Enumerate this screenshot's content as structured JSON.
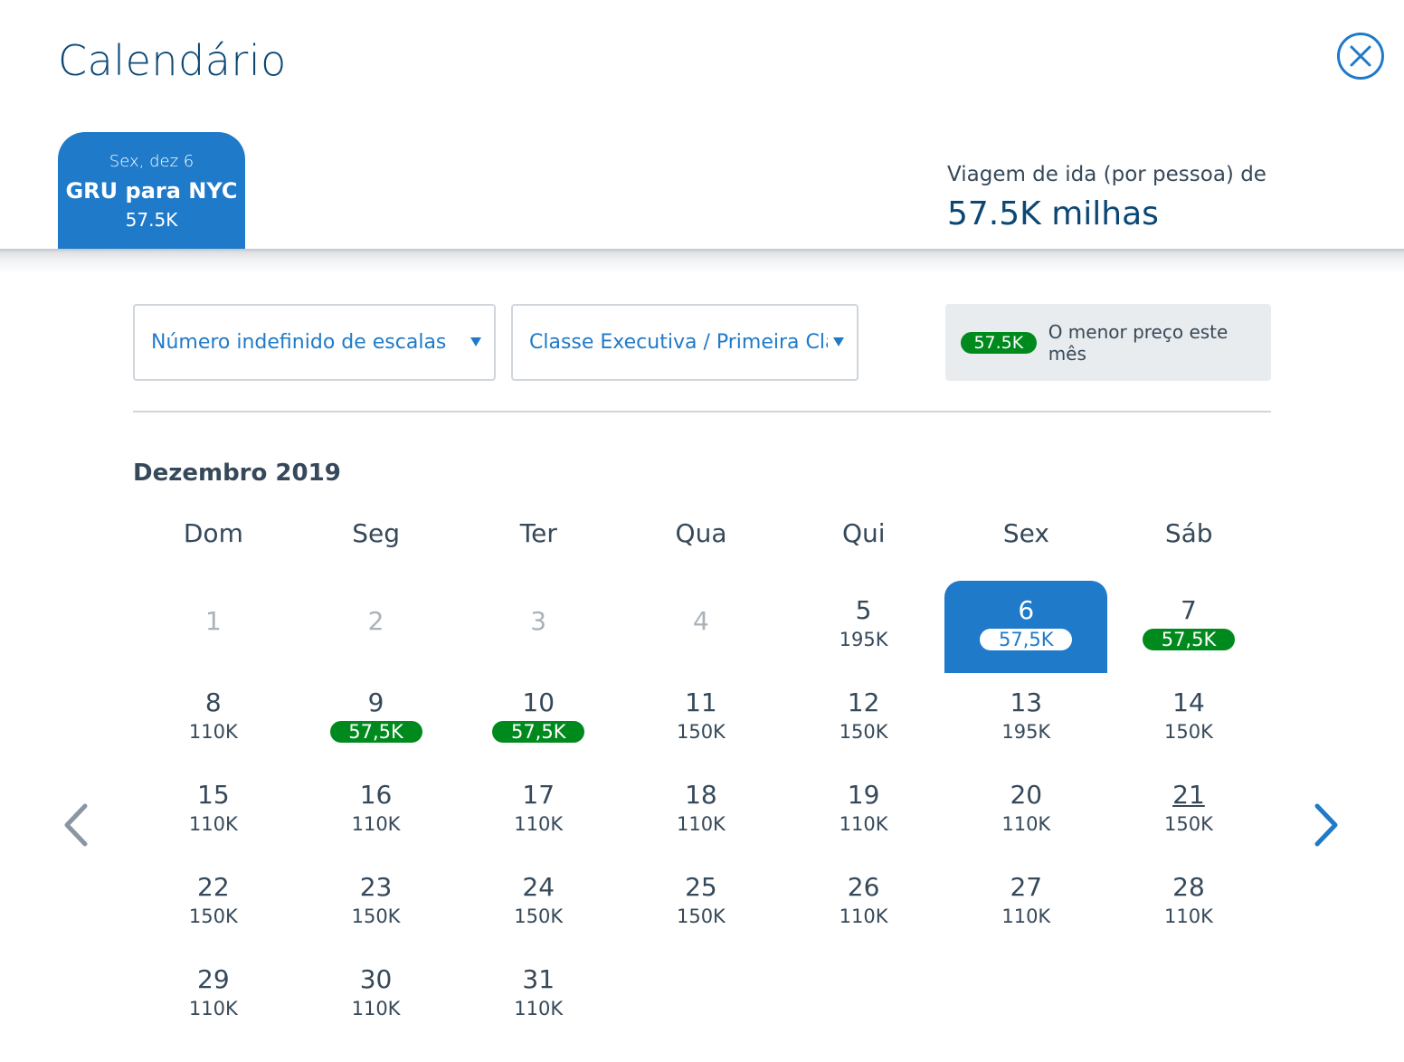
{
  "header": {
    "title": "Calendário",
    "close_icon": "close-circle-icon"
  },
  "trip_tab": {
    "date": "Sex, dez 6",
    "route": "GRU para NYC",
    "price": "57.5K"
  },
  "summary": {
    "label": "Viagem de ida (por pessoa) de",
    "value": "57.5K milhas"
  },
  "filters": {
    "stops": "Número indefinido de escalas",
    "cabin": "Classe Executiva / Primeira Clas"
  },
  "legend": {
    "badge": "57.5K",
    "text": "O menor preço este mês"
  },
  "calendar": {
    "month": "Dezembro 2019",
    "weekdays": [
      "Dom",
      "Seg",
      "Ter",
      "Qua",
      "Qui",
      "Sex",
      "Sáb"
    ],
    "days": [
      {
        "day": "1",
        "price": "",
        "state": "disabled"
      },
      {
        "day": "2",
        "price": "",
        "state": "disabled"
      },
      {
        "day": "3",
        "price": "",
        "state": "disabled"
      },
      {
        "day": "4",
        "price": "",
        "state": "disabled"
      },
      {
        "day": "5",
        "price": "195K",
        "state": "normal"
      },
      {
        "day": "6",
        "price": "57,5K",
        "state": "selected"
      },
      {
        "day": "7",
        "price": "57,5K",
        "state": "lowest"
      },
      {
        "day": "8",
        "price": "110K",
        "state": "normal"
      },
      {
        "day": "9",
        "price": "57,5K",
        "state": "lowest"
      },
      {
        "day": "10",
        "price": "57,5K",
        "state": "lowest"
      },
      {
        "day": "11",
        "price": "150K",
        "state": "normal"
      },
      {
        "day": "12",
        "price": "150K",
        "state": "normal"
      },
      {
        "day": "13",
        "price": "195K",
        "state": "normal"
      },
      {
        "day": "14",
        "price": "150K",
        "state": "normal"
      },
      {
        "day": "15",
        "price": "110K",
        "state": "normal"
      },
      {
        "day": "16",
        "price": "110K",
        "state": "normal"
      },
      {
        "day": "17",
        "price": "110K",
        "state": "normal"
      },
      {
        "day": "18",
        "price": "110K",
        "state": "normal"
      },
      {
        "day": "19",
        "price": "110K",
        "state": "normal"
      },
      {
        "day": "20",
        "price": "110K",
        "state": "normal"
      },
      {
        "day": "21",
        "price": "150K",
        "state": "underlined"
      },
      {
        "day": "22",
        "price": "150K",
        "state": "normal"
      },
      {
        "day": "23",
        "price": "150K",
        "state": "normal"
      },
      {
        "day": "24",
        "price": "150K",
        "state": "normal"
      },
      {
        "day": "25",
        "price": "150K",
        "state": "normal"
      },
      {
        "day": "26",
        "price": "110K",
        "state": "normal"
      },
      {
        "day": "27",
        "price": "110K",
        "state": "normal"
      },
      {
        "day": "28",
        "price": "110K",
        "state": "normal"
      },
      {
        "day": "29",
        "price": "110K",
        "state": "normal"
      },
      {
        "day": "30",
        "price": "110K",
        "state": "normal"
      },
      {
        "day": "31",
        "price": "110K",
        "state": "normal"
      }
    ]
  },
  "navigation": {
    "prev_icon": "chevron-left-icon",
    "next_icon": "chevron-right-icon"
  },
  "colors": {
    "primary": "#1f7ac9",
    "title": "#0b4774",
    "lowest": "#008a1e",
    "text": "#36495a",
    "disabled": "#a9b2ba"
  }
}
